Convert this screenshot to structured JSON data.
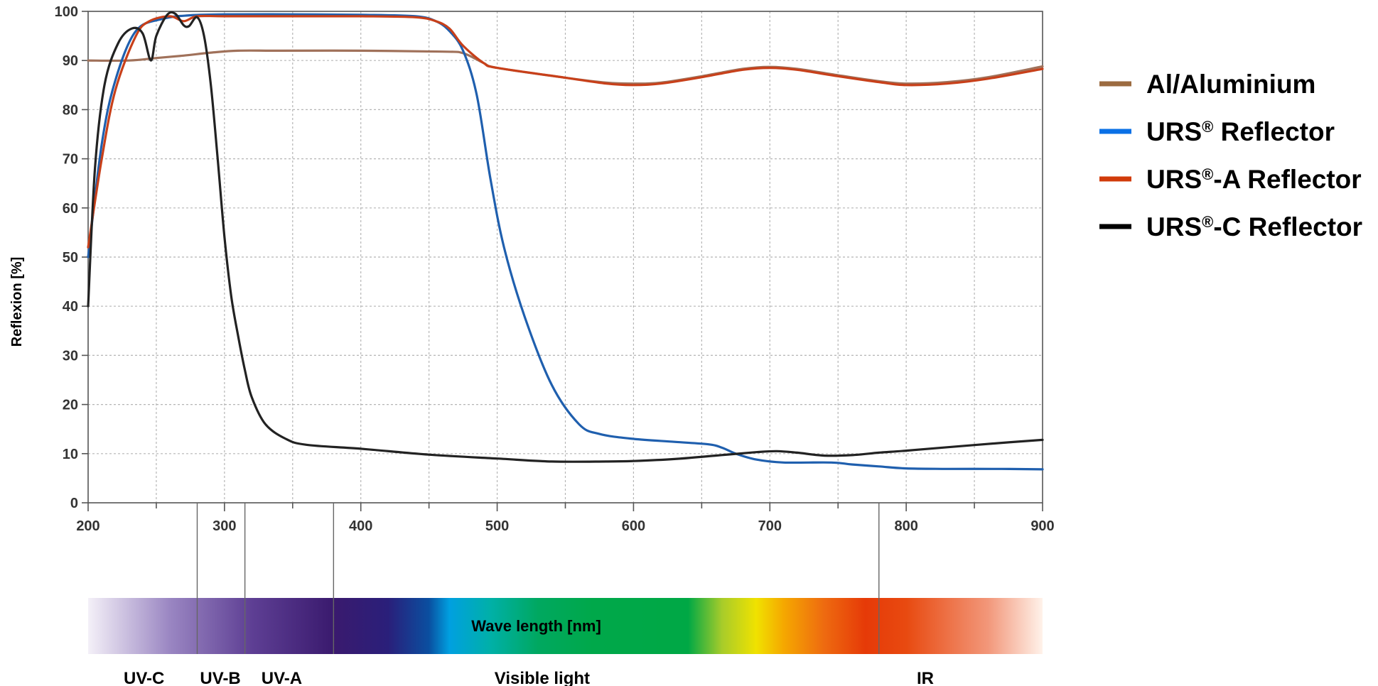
{
  "chart_data": {
    "type": "line",
    "title": "",
    "xlabel": "Wave length [nm]",
    "ylabel": "Reflexion [%]",
    "xlim": [
      200,
      900
    ],
    "ylim": [
      0,
      100
    ],
    "x_ticks": [
      200,
      300,
      400,
      500,
      600,
      700,
      800,
      900
    ],
    "y_ticks": [
      0,
      10,
      20,
      30,
      40,
      50,
      60,
      70,
      80,
      90,
      100
    ],
    "grid": true,
    "legend_position": "right",
    "series": [
      {
        "name_base": "Al/Aluminium",
        "name_sup": "",
        "name_suffix": "",
        "color": "#a0715a",
        "legend_color": "#9c6b40",
        "points": [
          [
            200,
            90
          ],
          [
            230,
            90
          ],
          [
            250,
            90.5
          ],
          [
            270,
            91
          ],
          [
            290,
            91.6
          ],
          [
            310,
            92
          ],
          [
            340,
            92
          ],
          [
            400,
            92
          ],
          [
            460,
            91.8
          ],
          [
            475,
            91.5
          ],
          [
            490,
            89.5
          ],
          [
            500,
            88.5
          ],
          [
            550,
            86.5
          ],
          [
            580,
            85.5
          ],
          [
            600,
            85.3
          ],
          [
            620,
            85.5
          ],
          [
            650,
            86.8
          ],
          [
            680,
            88.3
          ],
          [
            700,
            88.7
          ],
          [
            720,
            88.3
          ],
          [
            750,
            87
          ],
          [
            780,
            85.8
          ],
          [
            800,
            85.3
          ],
          [
            830,
            85.6
          ],
          [
            860,
            86.6
          ],
          [
            900,
            88.8
          ]
        ]
      },
      {
        "name_base": "URS",
        "name_sup": "®",
        "name_suffix": " Reflector",
        "color": "#1f5fae",
        "legend_color": "#0a70e6",
        "points": [
          [
            200,
            50
          ],
          [
            210,
            73
          ],
          [
            220,
            86
          ],
          [
            235,
            96
          ],
          [
            255,
            98.5
          ],
          [
            275,
            99.2
          ],
          [
            300,
            99.4
          ],
          [
            350,
            99.4
          ],
          [
            400,
            99.3
          ],
          [
            440,
            99
          ],
          [
            455,
            98
          ],
          [
            465,
            96
          ],
          [
            475,
            92
          ],
          [
            485,
            83
          ],
          [
            495,
            66
          ],
          [
            505,
            52
          ],
          [
            520,
            38
          ],
          [
            540,
            24
          ],
          [
            560,
            16
          ],
          [
            575,
            14
          ],
          [
            600,
            13
          ],
          [
            630,
            12.4
          ],
          [
            655,
            11.9
          ],
          [
            665,
            11.2
          ],
          [
            675,
            10
          ],
          [
            690,
            8.8
          ],
          [
            710,
            8.2
          ],
          [
            745,
            8.2
          ],
          [
            760,
            7.8
          ],
          [
            780,
            7.4
          ],
          [
            800,
            7
          ],
          [
            830,
            6.9
          ],
          [
            870,
            6.9
          ],
          [
            900,
            6.8
          ]
        ]
      },
      {
        "name_base": "URS",
        "name_sup": "®",
        "name_suffix": "-A Reflector",
        "color": "#c8401a",
        "legend_color": "#d13b0a",
        "points": [
          [
            200,
            52
          ],
          [
            210,
            70
          ],
          [
            220,
            84
          ],
          [
            235,
            95
          ],
          [
            245,
            98
          ],
          [
            260,
            99
          ],
          [
            270,
            98
          ],
          [
            280,
            99
          ],
          [
            300,
            99
          ],
          [
            350,
            99
          ],
          [
            400,
            99
          ],
          [
            440,
            98.8
          ],
          [
            455,
            98
          ],
          [
            465,
            96.5
          ],
          [
            475,
            93
          ],
          [
            490,
            89.5
          ],
          [
            500,
            88.5
          ],
          [
            550,
            86.5
          ],
          [
            580,
            85.3
          ],
          [
            600,
            85
          ],
          [
            620,
            85.3
          ],
          [
            650,
            86.6
          ],
          [
            680,
            88.1
          ],
          [
            700,
            88.5
          ],
          [
            720,
            88.1
          ],
          [
            750,
            86.8
          ],
          [
            780,
            85.6
          ],
          [
            800,
            85
          ],
          [
            830,
            85.3
          ],
          [
            860,
            86.3
          ],
          [
            900,
            88.3
          ]
        ]
      },
      {
        "name_base": "URS",
        "name_sup": "®",
        "name_suffix": "-C Reflector",
        "color": "#222222",
        "legend_color": "#000000",
        "points": [
          [
            200,
            40
          ],
          [
            205,
            68
          ],
          [
            212,
            85
          ],
          [
            222,
            93.5
          ],
          [
            232,
            96.5
          ],
          [
            240,
            95.5
          ],
          [
            246,
            90
          ],
          [
            250,
            95
          ],
          [
            258,
            99.3
          ],
          [
            264,
            99.5
          ],
          [
            270,
            97.2
          ],
          [
            274,
            97
          ],
          [
            280,
            98.8
          ],
          [
            285,
            95
          ],
          [
            290,
            85
          ],
          [
            295,
            70
          ],
          [
            300,
            54
          ],
          [
            305,
            42
          ],
          [
            310,
            34
          ],
          [
            315,
            27
          ],
          [
            320,
            21.5
          ],
          [
            330,
            16
          ],
          [
            345,
            13
          ],
          [
            360,
            11.8
          ],
          [
            400,
            11
          ],
          [
            450,
            9.8
          ],
          [
            500,
            9
          ],
          [
            540,
            8.4
          ],
          [
            580,
            8.4
          ],
          [
            600,
            8.5
          ],
          [
            630,
            8.9
          ],
          [
            660,
            9.6
          ],
          [
            690,
            10.3
          ],
          [
            705,
            10.5
          ],
          [
            720,
            10.2
          ],
          [
            740,
            9.6
          ],
          [
            760,
            9.7
          ],
          [
            780,
            10.2
          ],
          [
            800,
            10.6
          ],
          [
            830,
            11.3
          ],
          [
            870,
            12.2
          ],
          [
            900,
            12.8
          ]
        ]
      }
    ]
  },
  "spectrum": {
    "label": "Wave length [nm]",
    "band_boundaries_nm": [
      280,
      315,
      380,
      780
    ],
    "bands": [
      {
        "name": "UV-C",
        "center_nm": 241
      },
      {
        "name": "UV-B",
        "center_nm": 297
      },
      {
        "name": "UV-A",
        "center_nm": 342
      },
      {
        "name": "Visible light",
        "center_nm": 533
      },
      {
        "name": "IR",
        "center_nm": 814
      }
    ],
    "stops": [
      {
        "nm": 200,
        "color": "#f4f0f8"
      },
      {
        "nm": 260,
        "color": "#9a86c2"
      },
      {
        "nm": 320,
        "color": "#5e3f94"
      },
      {
        "nm": 380,
        "color": "#3a1a6e"
      },
      {
        "nm": 420,
        "color": "#2a1f7a"
      },
      {
        "nm": 450,
        "color": "#0a4fa0"
      },
      {
        "nm": 465,
        "color": "#00a0e0"
      },
      {
        "nm": 495,
        "color": "#00b0a8"
      },
      {
        "nm": 530,
        "color": "#00a860"
      },
      {
        "nm": 570,
        "color": "#00a84a"
      },
      {
        "nm": 640,
        "color": "#00a845"
      },
      {
        "nm": 665,
        "color": "#a8cc2a"
      },
      {
        "nm": 690,
        "color": "#f0e200"
      },
      {
        "nm": 710,
        "color": "#f5a800"
      },
      {
        "nm": 740,
        "color": "#ee6a10"
      },
      {
        "nm": 770,
        "color": "#e63a08"
      },
      {
        "nm": 800,
        "color": "#e84a10"
      },
      {
        "nm": 860,
        "color": "#f2977a"
      },
      {
        "nm": 900,
        "color": "#fff2ea"
      }
    ]
  }
}
